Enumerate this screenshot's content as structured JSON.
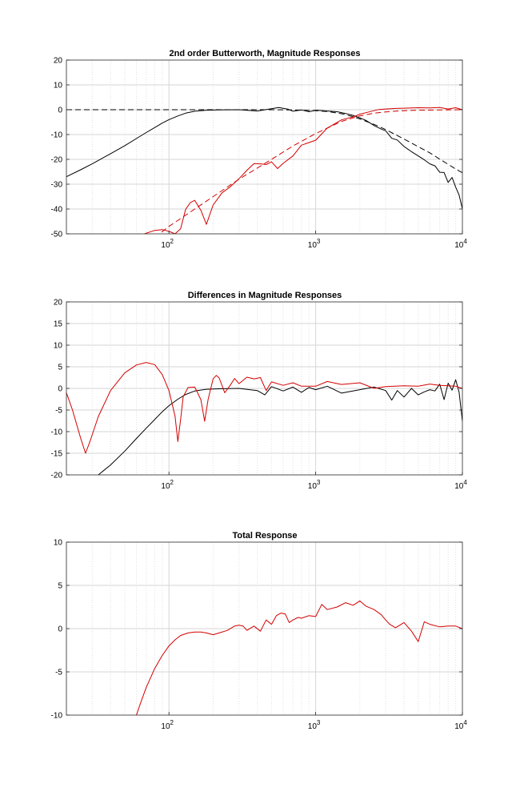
{
  "chart_data": [
    {
      "type": "line",
      "title": "2nd order Butterworth, Magnitude Responses",
      "xlabel": "",
      "ylabel": "",
      "x_scale": "log",
      "xlim": [
        20,
        10000
      ],
      "ylim": [
        -50,
        20
      ],
      "yticks": [
        20,
        10,
        0,
        -10,
        -20,
        -30,
        -40,
        -50
      ],
      "xticks": [
        {
          "value": 100,
          "base": "10",
          "exp": "2"
        },
        {
          "value": 1000,
          "base": "10",
          "exp": "3"
        },
        {
          "value": 10000,
          "base": "10",
          "exp": "4"
        }
      ],
      "grid": true,
      "series": [
        {
          "color": "#000000",
          "style": "solid",
          "x": [
            20,
            25,
            30,
            40,
            50,
            60,
            70,
            80,
            90,
            100,
            115,
            130,
            150,
            180,
            220,
            300,
            400,
            500,
            560,
            650,
            700,
            800,
            900,
            1000,
            1200,
            1400,
            1600,
            1800,
            2000,
            2200,
            2500,
            2800,
            3000,
            3300,
            3600,
            4000,
            4500,
            5000,
            5500,
            6000,
            6500,
            7000,
            7500,
            8000,
            8500,
            9000,
            9500,
            10000
          ],
          "y": [
            -27,
            -24.2,
            -21.8,
            -17.7,
            -14.5,
            -11.6,
            -9.2,
            -7.2,
            -5.4,
            -4,
            -2.5,
            -1.4,
            -0.6,
            -0.2,
            -0.1,
            0,
            -0.5,
            0.4,
            0.9,
            0.2,
            -0.6,
            -0.1,
            -0.8,
            -0.2,
            -0.5,
            -0.8,
            -1.5,
            -2.3,
            -3.3,
            -4.3,
            -6.4,
            -7.8,
            -8.5,
            -11.5,
            -12.2,
            -14.8,
            -16.9,
            -18.6,
            -20.2,
            -21.8,
            -22.6,
            -25.2,
            -25.3,
            -29.3,
            -27.3,
            -31.2,
            -34.4,
            -40
          ]
        },
        {
          "color": "#000000",
          "style": "dashed",
          "x": [
            20,
            100,
            200,
            300,
            500,
            700,
            1000,
            1200,
            1500,
            1800,
            2000,
            2500,
            3000,
            4000,
            5000,
            6000,
            7000,
            8000,
            9000,
            10000
          ],
          "y": [
            0,
            0,
            0,
            0,
            0,
            -0.1,
            -0.4,
            -0.7,
            -1.6,
            -2.8,
            -3.7,
            -5.9,
            -8,
            -11.8,
            -14.9,
            -17.4,
            -19.9,
            -22,
            -23.9,
            -25.4
          ]
        },
        {
          "color": "#d40000",
          "style": "solid",
          "x": [
            68,
            80,
            90,
            100,
            110,
            120,
            130,
            140,
            150,
            165,
            180,
            200,
            230,
            260,
            300,
            340,
            380,
            420,
            460,
            500,
            550,
            600,
            700,
            800,
            1000,
            1200,
            1500,
            1800,
            2000,
            2300,
            2700,
            3000,
            3500,
            4000,
            5000,
            6000,
            7000,
            8000,
            9000,
            10000
          ],
          "y": [
            -50,
            -48.6,
            -48.3,
            -49,
            -50,
            -48,
            -40.1,
            -37.4,
            -36.5,
            -40.5,
            -46.2,
            -38.4,
            -33.5,
            -31.2,
            -27.8,
            -24.4,
            -21.7,
            -21.8,
            -22.1,
            -21,
            -23.7,
            -21.6,
            -18.6,
            -14.3,
            -12.3,
            -7.4,
            -4.1,
            -2.9,
            -1.8,
            -0.9,
            0.1,
            0.3,
            0.5,
            0.6,
            0.8,
            0.7,
            0.9,
            0.3,
            0.8,
            0
          ]
        },
        {
          "color": "#d40000",
          "style": "dashed",
          "x": [
            80,
            100,
            150,
            200,
            300,
            500,
            700,
            1000,
            1500,
            2000,
            2500,
            3000,
            4000,
            5000,
            7000,
            10000
          ],
          "y": [
            -51.5,
            -47,
            -40,
            -35,
            -28,
            -20,
            -14.6,
            -9.6,
            -4.7,
            -2.5,
            -1.4,
            -0.9,
            -0.4,
            -0.2,
            -0.1,
            0
          ]
        }
      ]
    },
    {
      "type": "line",
      "title": "Differences in Magnitude Responses",
      "xlabel": "",
      "ylabel": "",
      "x_scale": "log",
      "xlim": [
        20,
        10000
      ],
      "ylim": [
        -20,
        20
      ],
      "yticks": [
        20,
        15,
        10,
        5,
        0,
        -5,
        -10,
        -15,
        -20
      ],
      "xticks": [
        {
          "value": 100,
          "base": "10",
          "exp": "2"
        },
        {
          "value": 1000,
          "base": "10",
          "exp": "3"
        },
        {
          "value": 10000,
          "base": "10",
          "exp": "4"
        }
      ],
      "grid": true,
      "series": [
        {
          "color": "#000000",
          "style": "solid",
          "x": [
            33,
            40,
            50,
            60,
            70,
            80,
            90,
            100,
            115,
            130,
            150,
            180,
            220,
            300,
            400,
            450,
            500,
            600,
            700,
            800,
            900,
            1000,
            1200,
            1500,
            2000,
            2500,
            3000,
            3300,
            3600,
            4000,
            4500,
            5000,
            5500,
            6000,
            6500,
            7000,
            7500,
            8000,
            8500,
            9000,
            9500,
            10000
          ],
          "y": [
            -20,
            -17.7,
            -14.5,
            -11.6,
            -9.2,
            -7.2,
            -5.4,
            -4,
            -2.5,
            -1.4,
            -0.6,
            -0.2,
            -0.1,
            0,
            -0.5,
            -1.5,
            0.4,
            -0.6,
            0.3,
            -0.9,
            0.2,
            -0.3,
            0.5,
            -1.1,
            -0.3,
            0.3,
            -0.5,
            -2.7,
            -0.5,
            -2,
            0,
            -1.5,
            -0.8,
            -0.3,
            -0.6,
            1,
            -2.6,
            1.2,
            -0.4,
            2,
            -0.9,
            -7.6
          ]
        },
        {
          "color": "#d40000",
          "style": "solid",
          "x": [
            20,
            22,
            25,
            27,
            29,
            33,
            40,
            50,
            60,
            70,
            80,
            90,
            100,
            110,
            115,
            120,
            125,
            135,
            150,
            165,
            175,
            185,
            200,
            210,
            220,
            240,
            260,
            280,
            300,
            340,
            380,
            420,
            460,
            500,
            600,
            700,
            800,
            1000,
            1200,
            1500,
            2000,
            2500,
            3000,
            4000,
            5000,
            6000,
            7000,
            8000,
            9000,
            10000
          ],
          "y": [
            -1,
            -5,
            -11.5,
            -15,
            -12.2,
            -6.5,
            -0.5,
            3.6,
            5.4,
            6,
            5.5,
            3.2,
            -0.5,
            -6.4,
            -12.3,
            -7.3,
            -1.9,
            0.2,
            0.3,
            -2.6,
            -7.6,
            -2.5,
            2.2,
            3,
            2.4,
            -1,
            0.6,
            2.3,
            1.1,
            2.6,
            2.2,
            2.5,
            -0.5,
            1.5,
            0.7,
            1.3,
            0.5,
            0.5,
            1.6,
            0.9,
            1.3,
            0,
            0.4,
            0.6,
            0.5,
            1,
            0.7,
            0.6,
            0.5,
            0
          ]
        }
      ]
    },
    {
      "type": "line",
      "title": "Total Response",
      "xlabel": "",
      "ylabel": "",
      "x_scale": "log",
      "xlim": [
        20,
        10000
      ],
      "ylim": [
        -10,
        10
      ],
      "yticks": [
        10,
        5,
        0,
        -5,
        -10
      ],
      "xticks": [
        {
          "value": 100,
          "base": "10",
          "exp": "2"
        },
        {
          "value": 1000,
          "base": "10",
          "exp": "3"
        },
        {
          "value": 10000,
          "base": "10",
          "exp": "4"
        }
      ],
      "grid": true,
      "series": [
        {
          "color": "#d40000",
          "style": "solid",
          "x": [
            60,
            65,
            70,
            80,
            90,
            100,
            110,
            120,
            135,
            150,
            165,
            180,
            200,
            220,
            250,
            280,
            300,
            320,
            340,
            380,
            420,
            460,
            500,
            540,
            580,
            620,
            660,
            700,
            760,
            800,
            900,
            1000,
            1100,
            1200,
            1400,
            1600,
            1800,
            2000,
            2200,
            2500,
            2800,
            3000,
            3200,
            3500,
            4000,
            4500,
            5000,
            5500,
            6000,
            7000,
            8000,
            9000,
            10000
          ],
          "y": [
            -10,
            -8.3,
            -6.8,
            -4.6,
            -3.1,
            -2,
            -1.3,
            -0.8,
            -0.5,
            -0.4,
            -0.4,
            -0.5,
            -0.7,
            -0.5,
            -0.2,
            0.3,
            0.4,
            0.3,
            -0.2,
            0.3,
            -0.3,
            1,
            0.5,
            1.5,
            1.8,
            1.7,
            0.7,
            1,
            1.3,
            1.2,
            1.5,
            1.4,
            2.8,
            2.2,
            2.5,
            3,
            2.7,
            3.2,
            2.6,
            2.2,
            1.6,
            1,
            0.5,
            0.1,
            0.7,
            -0.3,
            -1.5,
            0.8,
            0.5,
            0.2,
            0.3,
            0.3,
            0
          ]
        }
      ]
    }
  ]
}
